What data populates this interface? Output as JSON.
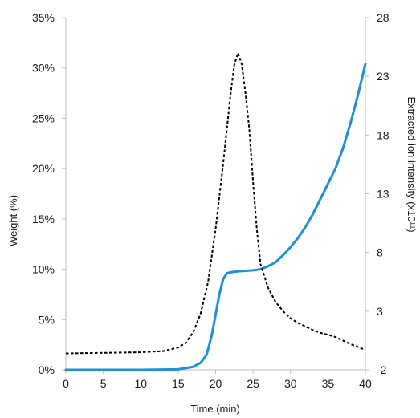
{
  "chart_data": {
    "type": "line",
    "title": "",
    "xlabel": "Time (min)",
    "ylabel": "Weight (%)",
    "y2label": "Extracted ion intensity (x10¹¹)",
    "xlim": [
      0,
      40
    ],
    "ylim": [
      0,
      35
    ],
    "y2lim": [
      -2,
      28
    ],
    "grid": false,
    "legend": "none",
    "x_ticks": [
      0,
      5,
      10,
      15,
      20,
      25,
      30,
      35,
      40
    ],
    "y_ticks": [
      0,
      5,
      10,
      15,
      20,
      25,
      30,
      35
    ],
    "y_tick_labels": [
      "0%",
      "5%",
      "10%",
      "15%",
      "20%",
      "25%",
      "30%",
      "35%"
    ],
    "y2_ticks": [
      -2,
      3,
      8,
      13,
      18,
      23,
      28
    ],
    "series": [
      {
        "axis": "left",
        "style": "solid",
        "color": "#1f8fd6",
        "x": [
          0,
          5,
          10,
          15,
          17,
          18,
          18.8,
          19.5,
          20,
          20.5,
          21,
          21.5,
          22,
          23,
          24,
          25,
          26,
          27,
          28,
          29,
          30,
          31,
          32,
          33,
          34,
          35,
          36,
          37,
          38,
          39,
          40
        ],
        "y": [
          0,
          0,
          0,
          0.05,
          0.3,
          0.7,
          1.5,
          3.5,
          5.5,
          7.5,
          9.0,
          9.6,
          9.7,
          9.8,
          9.85,
          9.9,
          10.0,
          10.3,
          10.7,
          11.4,
          12.2,
          13.1,
          14.2,
          15.5,
          17.0,
          18.5,
          20.0,
          22.0,
          24.5,
          27.3,
          30.4
        ]
      },
      {
        "axis": "right",
        "style": "dashed",
        "color": "#000000",
        "x": [
          0,
          5,
          10,
          13,
          15,
          16,
          17,
          18,
          19,
          20,
          21,
          22,
          22.5,
          23,
          23.5,
          24,
          24.5,
          25,
          25.5,
          26,
          27,
          28,
          29,
          30,
          31,
          32,
          33,
          34,
          35,
          36,
          37,
          38,
          39,
          40
        ],
        "y": [
          -0.6,
          -0.55,
          -0.5,
          -0.4,
          -0.1,
          0.3,
          1.2,
          2.8,
          5.5,
          10.0,
          15.5,
          21.5,
          24.0,
          25.0,
          24.0,
          21.5,
          18.5,
          14.0,
          10.0,
          7.0,
          5.0,
          3.8,
          3.0,
          2.4,
          2.0,
          1.7,
          1.4,
          1.15,
          1.0,
          0.8,
          0.5,
          0.2,
          -0.05,
          -0.3
        ]
      }
    ]
  }
}
